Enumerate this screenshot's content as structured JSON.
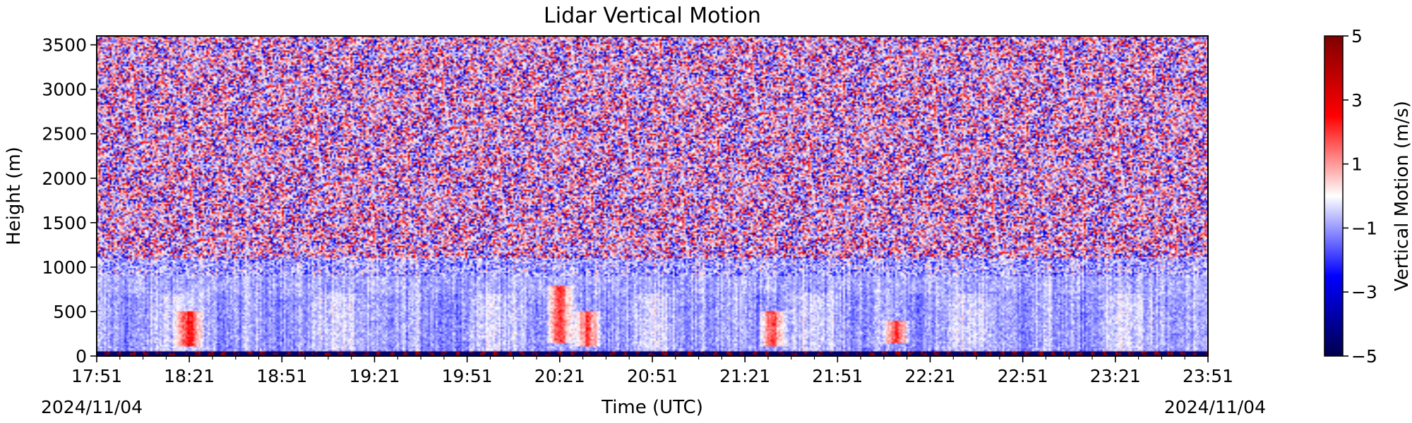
{
  "chart_data": {
    "type": "heatmap",
    "title": "Lidar Vertical Motion",
    "xlabel": "Time (UTC)",
    "ylabel": "Height (m)",
    "x_start_date": "2024/11/04",
    "x_end_date": "2024/11/04",
    "x_ticks": [
      "17:51",
      "18:21",
      "18:51",
      "19:21",
      "19:51",
      "20:21",
      "20:51",
      "21:21",
      "21:51",
      "22:21",
      "22:51",
      "23:21",
      "23:51"
    ],
    "x_minor_ticks_per_interval": 3,
    "x_range": [
      "17:51",
      "23:51"
    ],
    "y_ticks": [
      0,
      500,
      1000,
      1500,
      2000,
      2500,
      3000,
      3500
    ],
    "y_range": [
      0,
      3600
    ],
    "colorbar": {
      "label": "Vertical Motion (m/s)",
      "range": [
        -5,
        5
      ],
      "ticks": [
        "5",
        "3",
        "1",
        "−1",
        "−3",
        "−5"
      ],
      "colormap": "seismic",
      "colors": [
        "#00004c",
        "#0000ff",
        "#ffffff",
        "#ff0000",
        "#800000"
      ]
    },
    "grid": false,
    "features": {
      "noise_above_height_m": 1100,
      "signal_layer_top_m": 1100,
      "surface_band_height_m": 50,
      "updraft_events": [
        {
          "time": "18:21",
          "height_range": [
            100,
            500
          ]
        },
        {
          "time": "20:21",
          "height_range": [
            150,
            800
          ]
        },
        {
          "time": "20:30",
          "height_range": [
            100,
            500
          ]
        },
        {
          "time": "21:30",
          "height_range": [
            100,
            500
          ]
        },
        {
          "time": "22:10",
          "height_range": [
            150,
            400
          ]
        }
      ]
    }
  }
}
